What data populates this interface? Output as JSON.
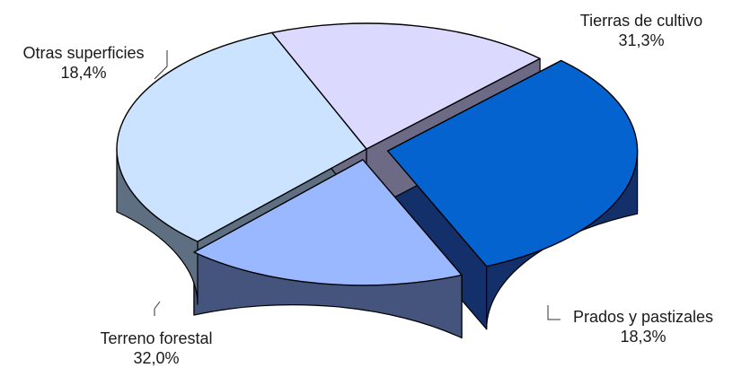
{
  "chart_data": {
    "type": "pie",
    "title": "",
    "slices": [
      {
        "label": "Tierras de cultivo",
        "value": 31.3,
        "value_text": "31,3%",
        "top_color": "#0563cf",
        "side_color": "#13306a",
        "exploded": true
      },
      {
        "label": "Prados y pastizales",
        "value": 18.3,
        "value_text": "18,3%",
        "top_color": "#99b8ff",
        "side_color": "#44547c",
        "exploded": true
      },
      {
        "label": "Terreno forestal",
        "value": 32.0,
        "value_text": "32,0%",
        "top_color": "#cce3ff",
        "side_color": "#5f6f82",
        "exploded": false
      },
      {
        "label": "Otras superficies",
        "value": 18.4,
        "value_text": "18,4%",
        "top_color": "#dcd9ff",
        "side_color": "#6c6a85",
        "exploded": false
      }
    ],
    "style": "3d-exploded",
    "legend": "none",
    "edge_color": "#000000"
  }
}
